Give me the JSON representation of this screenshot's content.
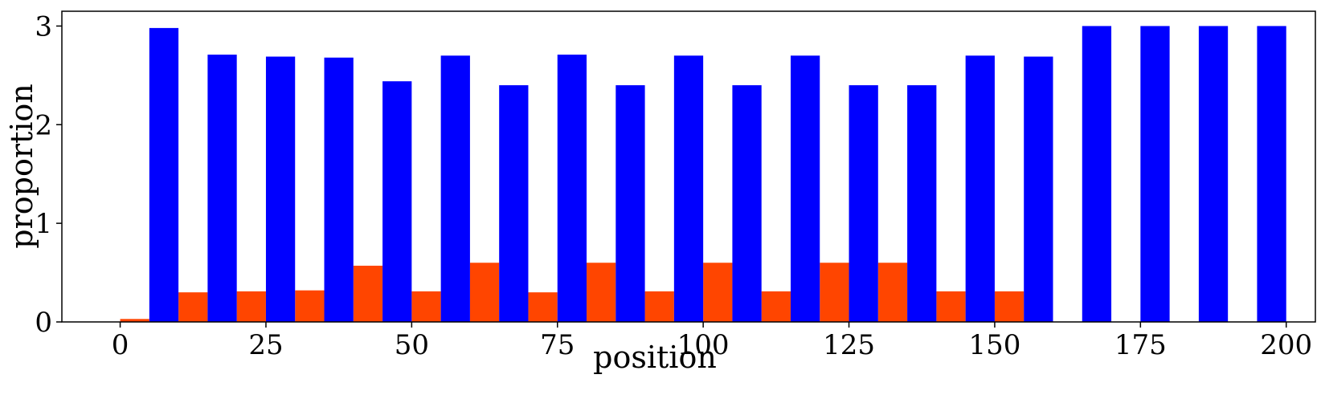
{
  "chart_data": {
    "type": "bar",
    "title": "",
    "xlabel": "position",
    "ylabel": "proportion",
    "xlim": [
      -10,
      205
    ],
    "ylim": [
      0,
      3.15
    ],
    "xticks": [
      0,
      25,
      50,
      75,
      100,
      125,
      150,
      175,
      200
    ],
    "yticks": [
      0,
      1,
      2,
      3
    ],
    "bin_width": 10,
    "bar_width": 5,
    "series": [
      {
        "name": "orange",
        "color": "#ff4500",
        "x": [
          0,
          10,
          20,
          30,
          40,
          50,
          60,
          70,
          80,
          90,
          100,
          110,
          120,
          130,
          140,
          150
        ],
        "values": [
          0.03,
          0.3,
          0.31,
          0.32,
          0.57,
          0.31,
          0.6,
          0.3,
          0.6,
          0.31,
          0.6,
          0.31,
          0.6,
          0.6,
          0.31,
          0.31
        ]
      },
      {
        "name": "blue",
        "color": "#0000ff",
        "x": [
          5,
          15,
          25,
          35,
          45,
          55,
          65,
          75,
          85,
          95,
          105,
          115,
          125,
          135,
          145,
          155,
          165,
          175,
          185,
          195
        ],
        "values": [
          2.98,
          2.71,
          2.69,
          2.68,
          2.44,
          2.7,
          2.4,
          2.71,
          2.4,
          2.7,
          2.4,
          2.7,
          2.4,
          2.4,
          2.7,
          2.69,
          3.0,
          3.0,
          3.0,
          3.0
        ]
      }
    ]
  }
}
